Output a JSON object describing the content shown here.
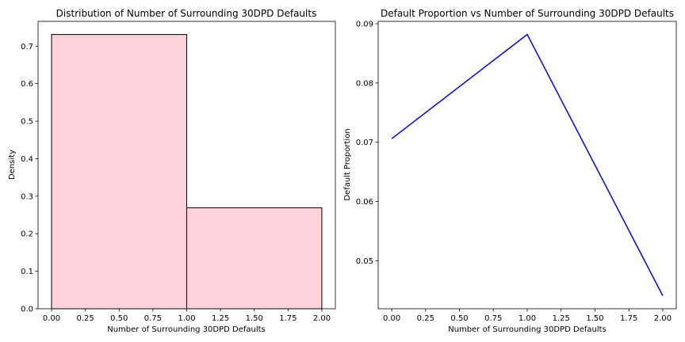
{
  "chart_data": [
    {
      "type": "bar",
      "title": "Distribution of Number of Surrounding 30DPD Defaults",
      "xlabel": "Number of Surrounding 30DPD Defaults",
      "ylabel": "Density",
      "bins": [
        {
          "x0": 0.0,
          "x1": 1.0,
          "value": 0.731
        },
        {
          "x0": 1.0,
          "x1": 2.0,
          "value": 0.269
        }
      ],
      "xlim": [
        -0.1,
        2.1
      ],
      "ylim": [
        0,
        0.766
      ],
      "xticks": [
        0.0,
        0.25,
        0.5,
        0.75,
        1.0,
        1.25,
        1.5,
        1.75,
        2.0
      ],
      "xtick_labels": [
        "0.00",
        "0.25",
        "0.50",
        "0.75",
        "1.00",
        "1.25",
        "1.50",
        "1.75",
        "2.00"
      ],
      "yticks": [
        0.0,
        0.1,
        0.2,
        0.3,
        0.4,
        0.5,
        0.6,
        0.7
      ],
      "ytick_labels": [
        "0.0",
        "0.1",
        "0.2",
        "0.3",
        "0.4",
        "0.5",
        "0.6",
        "0.7"
      ],
      "bar_color": "#ffd1da",
      "edge_color": "#000000",
      "grid": false
    },
    {
      "type": "line",
      "title": "Default Proportion vs Number of Surrounding 30DPD Defaults",
      "xlabel": "Number of Surrounding 30DPD Defaults",
      "ylabel": "Default Proportion",
      "x": [
        0.0,
        1.0,
        2.0
      ],
      "y": [
        0.0706,
        0.0882,
        0.0441
      ],
      "xlim": [
        -0.1,
        2.1
      ],
      "ylim": [
        0.0419,
        0.0904
      ],
      "xticks": [
        0.0,
        0.25,
        0.5,
        0.75,
        1.0,
        1.25,
        1.5,
        1.75,
        2.0
      ],
      "xtick_labels": [
        "0.00",
        "0.25",
        "0.50",
        "0.75",
        "1.00",
        "1.25",
        "1.50",
        "1.75",
        "2.00"
      ],
      "yticks": [
        0.05,
        0.06,
        0.07,
        0.08,
        0.09
      ],
      "ytick_labels": [
        "0.05",
        "0.06",
        "0.07",
        "0.08",
        "0.09"
      ],
      "line_color": "#0000ff",
      "grid": false
    }
  ]
}
